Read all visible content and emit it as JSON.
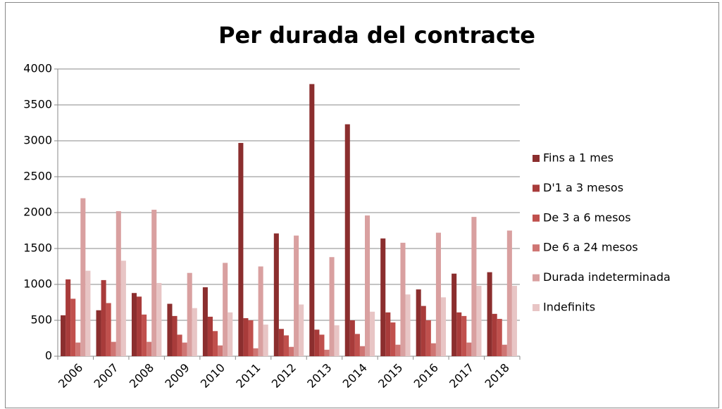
{
  "chart_data": {
    "type": "bar",
    "title": "Per durada del contracte",
    "categories": [
      "2006",
      "2007",
      "2008",
      "2009",
      "2010",
      "2011",
      "2012",
      "2013",
      "2014",
      "2015",
      "2016",
      "2017",
      "2018"
    ],
    "series": [
      {
        "name": "Fins a 1 mes",
        "color": "#8b2e2e",
        "values": [
          570,
          640,
          880,
          730,
          960,
          2970,
          1710,
          3790,
          3230,
          1640,
          930,
          1150,
          1170
        ]
      },
      {
        "name": "D'1 a 3 mesos",
        "color": "#a83b3a",
        "values": [
          1070,
          1060,
          830,
          560,
          550,
          530,
          380,
          370,
          500,
          610,
          700,
          610,
          590
        ]
      },
      {
        "name": "De 3 a 6 mesos",
        "color": "#c0504d",
        "values": [
          800,
          740,
          580,
          300,
          350,
          500,
          290,
          300,
          310,
          470,
          500,
          560,
          520
        ]
      },
      {
        "name": "De 6 a 24 mesos",
        "color": "#cf7573",
        "values": [
          190,
          200,
          200,
          190,
          150,
          110,
          130,
          90,
          140,
          160,
          180,
          190,
          160
        ]
      },
      {
        "name": "Durada indeterminada",
        "color": "#d9a0a0",
        "values": [
          2200,
          2020,
          2040,
          1160,
          1300,
          1250,
          1680,
          1380,
          1960,
          1580,
          1720,
          1940,
          1750
        ]
      },
      {
        "name": "Indefinits",
        "color": "#e8c5c5",
        "values": [
          1190,
          1330,
          1020,
          670,
          610,
          440,
          720,
          430,
          620,
          860,
          820,
          980,
          980
        ]
      }
    ],
    "ylim": [
      0,
      4000
    ],
    "yticks": [
      0,
      500,
      1000,
      1500,
      2000,
      2500,
      3000,
      3500,
      4000
    ],
    "grid": true,
    "legend": "right"
  }
}
